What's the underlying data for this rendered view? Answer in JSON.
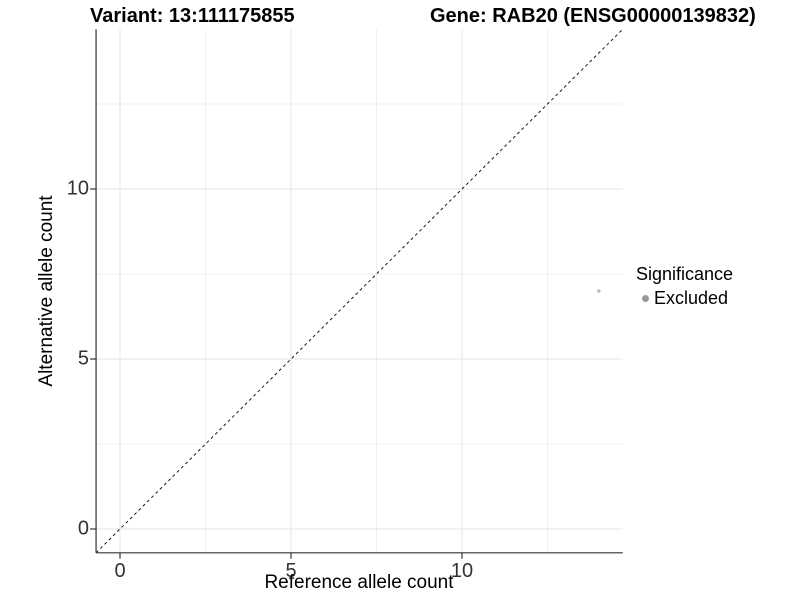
{
  "titles": {
    "left": "Variant: 13:111175855",
    "right": "Gene: RAB20 (ENSG00000139832)"
  },
  "chart_data": {
    "type": "scatter",
    "xlabel": "Reference allele count",
    "ylabel": "Alternative allele count",
    "xlim": [
      -0.7,
      14.7
    ],
    "ylim": [
      -0.7,
      14.7
    ],
    "xticks": [
      0,
      5,
      10
    ],
    "yticks": [
      0,
      5,
      10
    ],
    "minor_gridlines_x": [
      2.5,
      7.5,
      12.5
    ],
    "minor_gridlines_y": [
      2.5,
      7.5,
      12.5
    ],
    "grid": true,
    "reference_line": {
      "kind": "identity-diagonal",
      "style": "dashed",
      "color": "#1a1a1a"
    },
    "series": [
      {
        "name": "Excluded",
        "color": "#bdbdbd",
        "point_radius": 1.8,
        "points": [
          {
            "x": 14,
            "y": 7
          }
        ]
      }
    ],
    "legend": {
      "title": "Significance",
      "position": "right",
      "items": [
        {
          "label": "Excluded",
          "color": "#999999"
        }
      ]
    }
  },
  "colors": {
    "background": "#ffffff",
    "axis_line": "#333333",
    "grid_major": "#e6e6e6",
    "grid_minor": "#f1f1f1",
    "tick_mark": "#333333"
  }
}
